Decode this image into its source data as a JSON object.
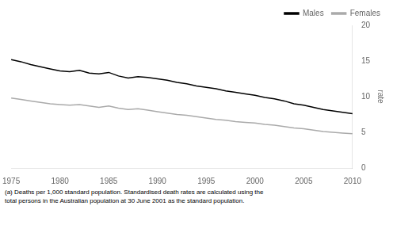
{
  "chart_data": {
    "type": "line",
    "x": [
      1975,
      1976,
      1977,
      1978,
      1979,
      1980,
      1981,
      1982,
      1983,
      1984,
      1985,
      1986,
      1987,
      1988,
      1989,
      1990,
      1991,
      1992,
      1993,
      1994,
      1995,
      1996,
      1997,
      1998,
      1999,
      2000,
      2001,
      2002,
      2003,
      2004,
      2005,
      2006,
      2007,
      2008,
      2009,
      2010
    ],
    "series": [
      {
        "name": "Males",
        "color": "#000000",
        "values": [
          15.2,
          14.9,
          14.5,
          14.2,
          13.9,
          13.6,
          13.5,
          13.7,
          13.3,
          13.2,
          13.4,
          12.9,
          12.6,
          12.8,
          12.7,
          12.5,
          12.3,
          12.0,
          11.8,
          11.5,
          11.3,
          11.1,
          10.8,
          10.6,
          10.4,
          10.2,
          9.9,
          9.7,
          9.4,
          9.0,
          8.8,
          8.5,
          8.2,
          8.0,
          7.8,
          7.6
        ]
      },
      {
        "name": "Females",
        "color": "#aaaaaa",
        "values": [
          9.8,
          9.6,
          9.4,
          9.2,
          9.0,
          8.9,
          8.8,
          8.9,
          8.7,
          8.5,
          8.7,
          8.4,
          8.2,
          8.3,
          8.1,
          7.9,
          7.7,
          7.5,
          7.4,
          7.2,
          7.0,
          6.8,
          6.7,
          6.5,
          6.4,
          6.3,
          6.1,
          6.0,
          5.8,
          5.6,
          5.5,
          5.3,
          5.1,
          5.0,
          4.9,
          4.8
        ]
      }
    ],
    "xlim": [
      1975,
      2010
    ],
    "xticks": [
      1975,
      1980,
      1985,
      1990,
      1995,
      2000,
      2005,
      2010
    ],
    "ylim": [
      0,
      20
    ],
    "yticks": [
      0,
      5,
      10,
      15,
      20
    ],
    "ylabel": "rate",
    "legend": "upper right",
    "grid": false,
    "footnote": "(a) Deaths per 1,000 standard population. Standardised death rates are calculated using the\ntotal persons in the Australian population at 30 June 2001 as the standard population."
  }
}
